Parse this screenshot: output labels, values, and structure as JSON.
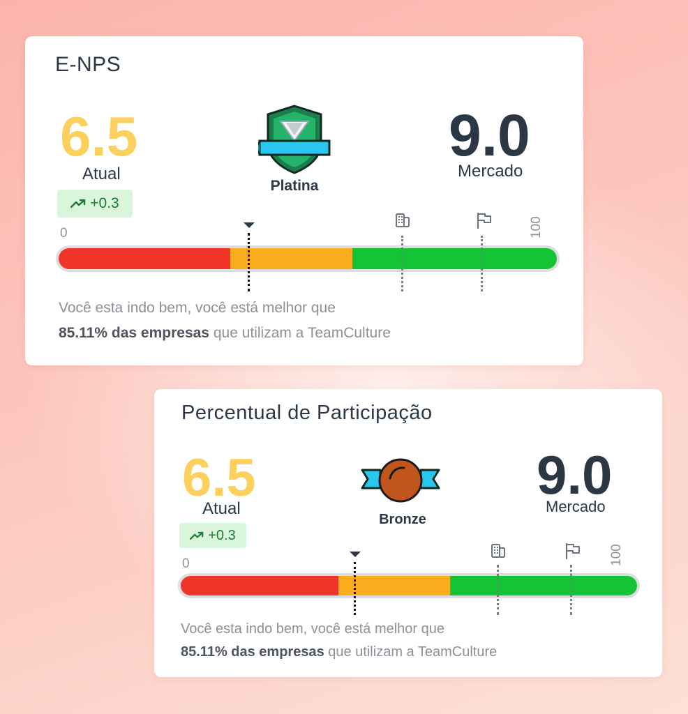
{
  "cards": [
    {
      "title": "E-NPS",
      "current_value": "6.5",
      "current_label": "Atual",
      "delta": "+0.3",
      "badge_label": "Platina",
      "market_value": "9.0",
      "market_label": "Mercado",
      "scale_min": "0",
      "scale_max": "100",
      "description_line1": "Você esta indo bem, você está melhor que",
      "description_bold": "85.11% das empresas",
      "description_rest": " que utilizam a TeamCulture"
    },
    {
      "title": "Percentual de Participação",
      "current_value": "6.5",
      "current_label": "Atual",
      "delta": "+0.3",
      "badge_label": "Bronze",
      "market_value": "9.0",
      "market_label": "Mercado",
      "scale_min": "0",
      "scale_max": "100",
      "description_line1": "Você esta indo bem, você está melhor que",
      "description_bold": "85.11% das empresas",
      "description_rest": " que utilizam a TeamCulture"
    }
  ],
  "colors": {
    "current": "#fbd05c",
    "text": "#2c3746",
    "red": "#ef3529",
    "orange": "#fbad1d",
    "green": "#13c535",
    "delta_bg": "#d9f6dc",
    "delta_text": "#1b7a33"
  },
  "icons": {
    "delta": "trending-up-icon",
    "platinum": "platinum-shield-badge-icon",
    "bronze": "bronze-medal-badge-icon",
    "company": "building-icon",
    "goal": "flag-icon",
    "current_marker": "triangle-down-icon"
  }
}
